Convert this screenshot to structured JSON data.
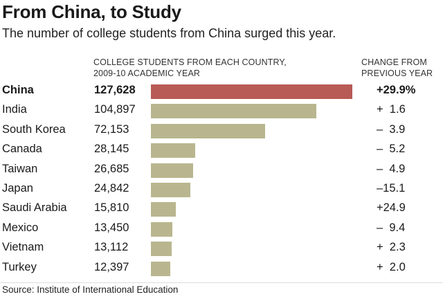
{
  "title": "From China, to Study",
  "subtitle": "The number of college students from China surged this year.",
  "headers": {
    "students_line1": "COLLEGE STUDENTS FROM EACH COUNTRY,",
    "students_line2": "2009-10 ACADEMIC YEAR",
    "change_line1": "CHANGE FROM",
    "change_line2": "PREVIOUS YEAR"
  },
  "source": "Source: Institute of International Education",
  "colors": {
    "highlight_bar": "#b85a55",
    "bar": "#b9b68f"
  },
  "chart_data": {
    "type": "bar",
    "orientation": "horizontal",
    "categories": [
      "China",
      "India",
      "South Korea",
      "Canada",
      "Taiwan",
      "Japan",
      "Saudi Arabia",
      "Mexico",
      "Vietnam",
      "Turkey"
    ],
    "values": [
      127628,
      104897,
      72153,
      28145,
      26685,
      24842,
      15810,
      13450,
      13112,
      12397
    ],
    "value_labels": [
      "127,628",
      "104,897",
      "72,153",
      "28,145",
      "26,685",
      "24,842",
      "15,810",
      "13,450",
      "13,112",
      "12,397"
    ],
    "change_labels": [
      "+29.9%",
      "+  1.6",
      "–  3.9",
      "–  5.2",
      "–  4.9",
      "–15.1",
      "+24.9",
      "–  9.4",
      "+  2.3",
      "+  2.0"
    ],
    "highlight": "China",
    "xlim": [
      0,
      127628
    ]
  }
}
